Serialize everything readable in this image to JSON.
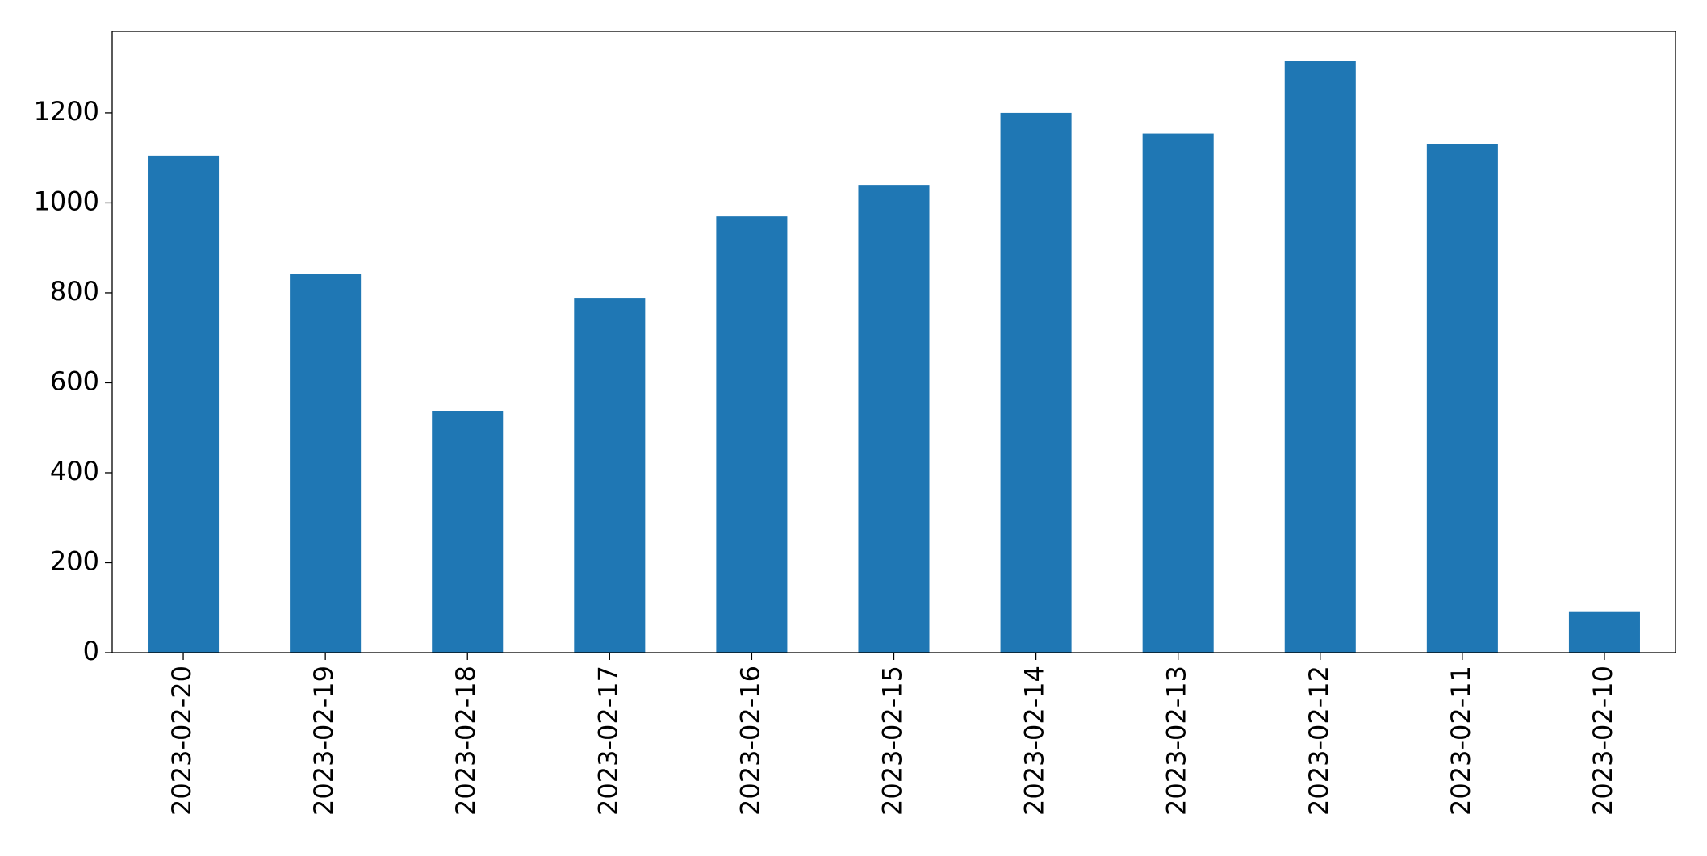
{
  "chart_data": {
    "type": "bar",
    "categories": [
      "2023-02-20",
      "2023-02-19",
      "2023-02-18",
      "2023-02-17",
      "2023-02-16",
      "2023-02-15",
      "2023-02-14",
      "2023-02-13",
      "2023-02-12",
      "2023-02-11",
      "2023-02-10"
    ],
    "values": [
      1105,
      842,
      537,
      789,
      970,
      1040,
      1200,
      1154,
      1316,
      1130,
      92
    ],
    "color": "#1f77b4",
    "ylim": [
      0,
      1381
    ],
    "yticks": [
      0,
      200,
      400,
      600,
      800,
      1000,
      1200
    ],
    "grid": false
  }
}
